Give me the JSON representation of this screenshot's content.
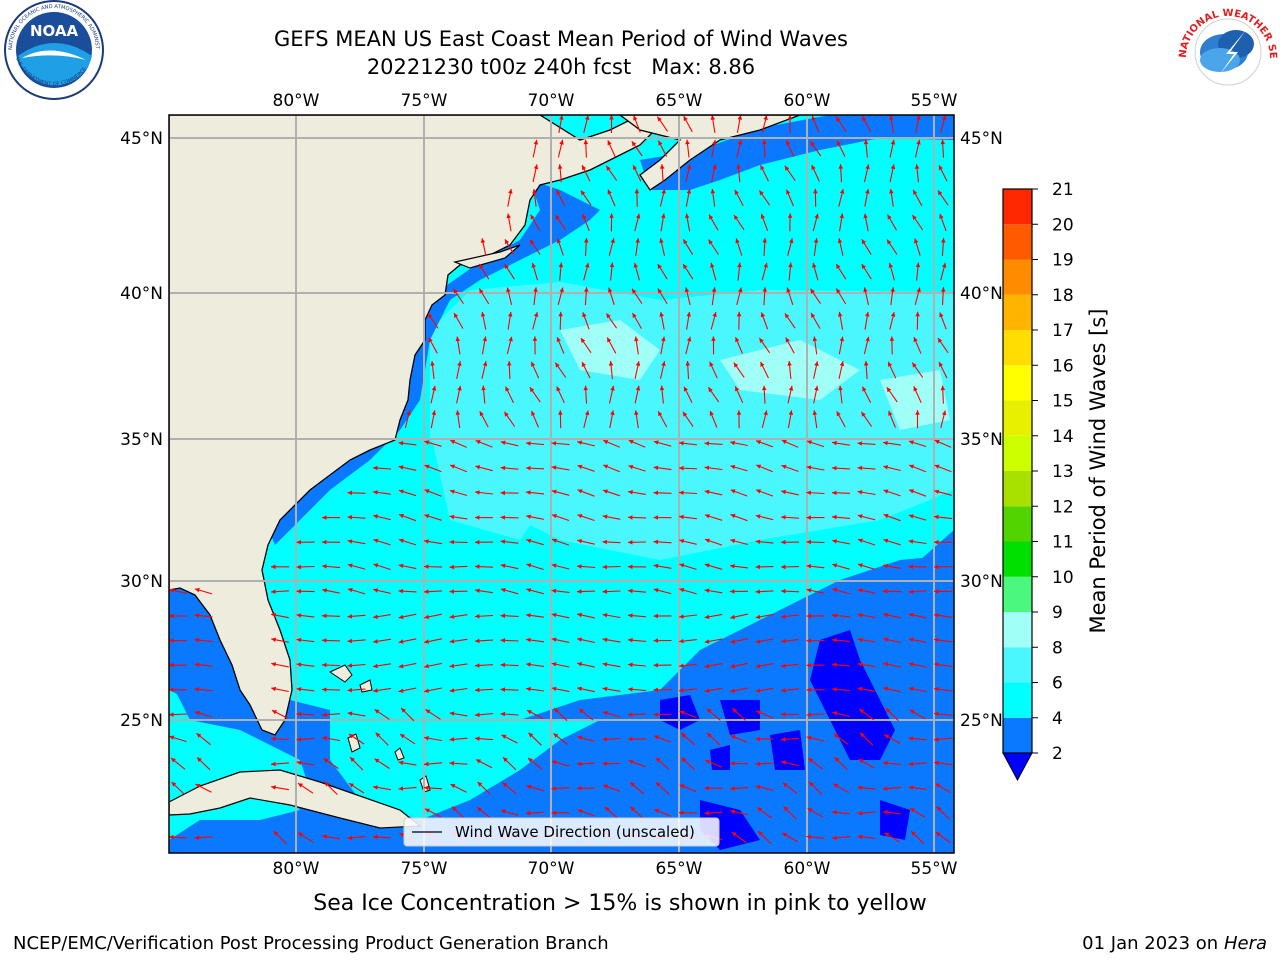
{
  "title": {
    "line1": "GEFS MEAN US East Coast Mean Period of Wind Waves",
    "line2": "20221230 t00z 240h fcst   Max: 8.86"
  },
  "logos": {
    "noaa_text": "NOAA",
    "noaa_ring": "NATIONAL OCEANIC AND ATMOSPHERIC ADMINISTRATION",
    "noaa_ring_bottom": "U.S. DEPARTMENT OF COMMERCE",
    "nws_ring": "NATIONAL WEATHER SERVICE"
  },
  "map": {
    "lon_labels": [
      "80°W",
      "75°W",
      "70°W",
      "65°W",
      "60°W",
      "55°W"
    ],
    "lat_labels": [
      "45°N",
      "40°N",
      "35°N",
      "30°N",
      "25°N"
    ],
    "legend_label": "Wind Wave Direction (unscaled)",
    "arrow_color": "#ff0000",
    "land_color": "#eeecdc"
  },
  "colorbar": {
    "label": "Mean Period of Wind Waves [s]",
    "ticks": [
      "2",
      "4",
      "6",
      "8",
      "9",
      "10",
      "11",
      "12",
      "13",
      "14",
      "15",
      "16",
      "17",
      "18",
      "19",
      "20",
      "21"
    ],
    "colors": [
      "#0a78ff",
      "#00ffff",
      "#4bf7ff",
      "#a0fff6",
      "#4cf77e",
      "#00e000",
      "#52d400",
      "#a8e000",
      "#ccff00",
      "#e8f000",
      "#ffff00",
      "#ffdd00",
      "#ffb400",
      "#ff8c00",
      "#ff5a00",
      "#ff2800",
      "#ff0000"
    ],
    "extend_color": "#0000ff"
  },
  "notes": {
    "ice": "Sea Ice Concentration > 15% is shown in pink to yellow",
    "footer_left": "NCEP/EMC/Verification Post Processing Product Generation Branch",
    "footer_date": "01 Jan 2023 on ",
    "footer_machine": "Hera"
  }
}
